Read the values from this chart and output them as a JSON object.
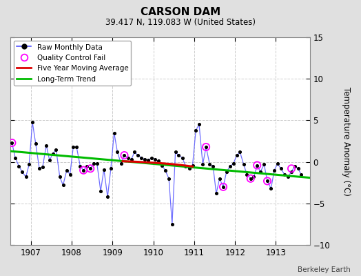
{
  "title": "CARSON DAM",
  "subtitle": "39.417 N, 119.083 W (United States)",
  "ylabel": "Temperature Anomaly (°C)",
  "attribution": "Berkeley Earth",
  "xlim": [
    1906.5,
    1913.83
  ],
  "ylim": [
    -10,
    15
  ],
  "yticks": [
    -10,
    -5,
    0,
    5,
    10,
    15
  ],
  "xticks": [
    1907,
    1908,
    1909,
    1910,
    1911,
    1912,
    1913
  ],
  "fig_bg_color": "#e0e0e0",
  "plot_bg_color": "#ffffff",
  "raw_x": [
    1906.54,
    1906.62,
    1906.71,
    1906.79,
    1906.88,
    1906.96,
    1907.04,
    1907.12,
    1907.21,
    1907.29,
    1907.38,
    1907.46,
    1907.54,
    1907.62,
    1907.71,
    1907.79,
    1907.88,
    1907.96,
    1908.04,
    1908.12,
    1908.21,
    1908.29,
    1908.38,
    1908.46,
    1908.54,
    1908.62,
    1908.71,
    1908.79,
    1908.88,
    1908.96,
    1909.04,
    1909.12,
    1909.21,
    1909.29,
    1909.38,
    1909.46,
    1909.54,
    1909.62,
    1909.71,
    1909.79,
    1909.88,
    1909.96,
    1910.04,
    1910.12,
    1910.21,
    1910.29,
    1910.38,
    1910.46,
    1910.54,
    1910.62,
    1910.71,
    1910.79,
    1910.88,
    1910.96,
    1911.04,
    1911.12,
    1911.21,
    1911.29,
    1911.38,
    1911.46,
    1911.54,
    1911.62,
    1911.71,
    1911.79,
    1911.88,
    1911.96,
    1912.04,
    1912.12,
    1912.21,
    1912.29,
    1912.38,
    1912.46,
    1912.54,
    1912.62,
    1912.71,
    1912.79,
    1912.88,
    1912.96,
    1913.04,
    1913.12,
    1913.21,
    1913.29,
    1913.38,
    1913.46,
    1913.54,
    1913.62
  ],
  "raw_y": [
    2.3,
    0.5,
    -0.5,
    -1.2,
    -1.8,
    -0.3,
    4.8,
    2.2,
    -0.8,
    -0.6,
    2.0,
    0.2,
    1.0,
    1.5,
    -1.8,
    -2.8,
    -1.0,
    -1.5,
    1.8,
    1.8,
    -0.5,
    -1.0,
    -0.5,
    -0.8,
    -0.2,
    -0.2,
    -3.5,
    -0.9,
    -4.2,
    -0.8,
    3.5,
    1.2,
    -0.2,
    0.8,
    0.5,
    0.3,
    1.2,
    0.8,
    0.5,
    0.3,
    0.2,
    0.5,
    0.3,
    0.1,
    -0.4,
    -1.0,
    -2.0,
    -7.5,
    1.2,
    0.8,
    0.5,
    -0.5,
    -0.8,
    -0.4,
    3.8,
    4.5,
    -0.3,
    1.8,
    -0.3,
    -0.5,
    -3.8,
    -2.0,
    -3.0,
    -1.2,
    -0.5,
    -0.2,
    0.8,
    1.2,
    -0.3,
    -1.5,
    -2.0,
    -1.8,
    -0.4,
    -1.2,
    -0.3,
    -2.3,
    -3.2,
    -1.0,
    -0.2,
    -0.8,
    -1.5,
    -1.8,
    -1.2,
    -0.5,
    -0.8,
    -1.5
  ],
  "qc_fail_x": [
    1906.54,
    1908.29,
    1908.46,
    1909.29,
    1911.29,
    1911.71,
    1912.38,
    1912.54,
    1912.79,
    1913.38
  ],
  "qc_fail_y": [
    2.3,
    -1.0,
    -0.8,
    0.8,
    1.8,
    -3.0,
    -2.0,
    -0.4,
    -2.3,
    -0.8
  ],
  "moving_avg_x": [
    1909.25,
    1909.5,
    1909.75,
    1910.0,
    1910.25,
    1910.5,
    1910.75,
    1910.96
  ],
  "moving_avg_y": [
    0.08,
    0.04,
    -0.02,
    -0.1,
    -0.18,
    -0.28,
    -0.42,
    -0.55
  ],
  "trend_x": [
    1906.5,
    1913.83
  ],
  "trend_y": [
    1.3,
    -1.9
  ],
  "raw_line_color": "#5555ff",
  "raw_marker_color": "#000000",
  "qc_edge_color": "#ff00ff",
  "mavg_color": "#dd0000",
  "trend_color": "#00bb00",
  "grid_color": "#cccccc"
}
